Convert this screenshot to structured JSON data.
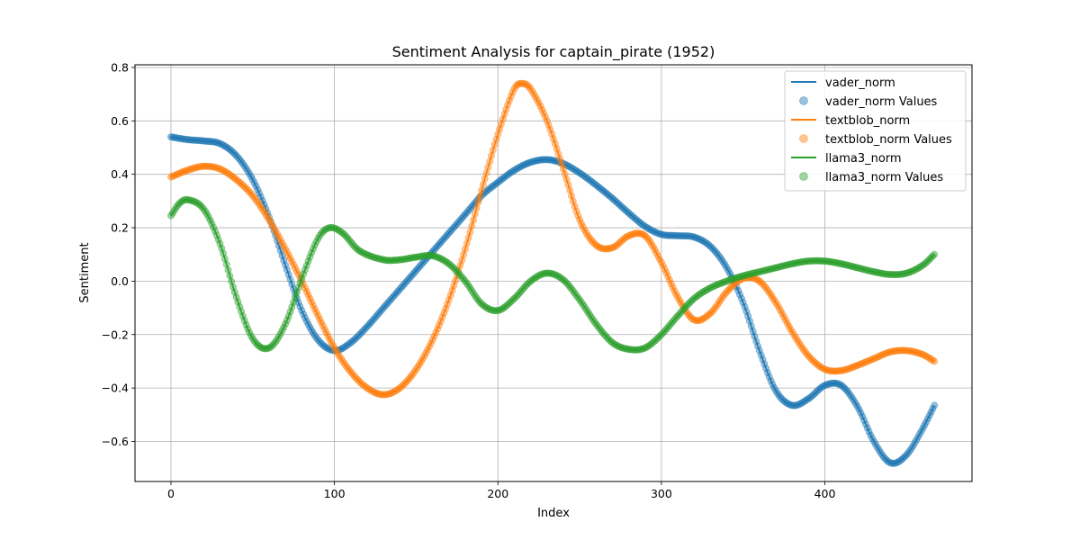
{
  "chart_data": {
    "type": "line",
    "title": "Sentiment Analysis for captain_pirate (1952)",
    "xlabel": "Index",
    "ylabel": "Sentiment",
    "xlim": [
      -22,
      490
    ],
    "ylim": [
      -0.75,
      0.81
    ],
    "xticks": [
      0,
      100,
      200,
      300,
      400
    ],
    "yticks": [
      -0.6,
      -0.4,
      -0.2,
      0.0,
      0.2,
      0.4,
      0.6,
      0.8
    ],
    "ytick_labels": [
      "−0.6",
      "−0.4",
      "−0.2",
      "0.0",
      "0.2",
      "0.4",
      "0.6",
      "0.8"
    ],
    "grid": true,
    "legend_position": "top-right",
    "n_points": 468,
    "series": [
      {
        "name": "vader_norm",
        "values_label": "vader_norm Values",
        "color": "#1f77b4",
        "anchors": [
          [
            0,
            0.54
          ],
          [
            10,
            0.53
          ],
          [
            20,
            0.525
          ],
          [
            30,
            0.515
          ],
          [
            40,
            0.47
          ],
          [
            50,
            0.38
          ],
          [
            60,
            0.24
          ],
          [
            70,
            0.06
          ],
          [
            80,
            -0.11
          ],
          [
            90,
            -0.22
          ],
          [
            100,
            -0.26
          ],
          [
            110,
            -0.23
          ],
          [
            120,
            -0.17
          ],
          [
            130,
            -0.1
          ],
          [
            140,
            -0.03
          ],
          [
            150,
            0.04
          ],
          [
            160,
            0.11
          ],
          [
            170,
            0.18
          ],
          [
            180,
            0.25
          ],
          [
            190,
            0.32
          ],
          [
            200,
            0.37
          ],
          [
            210,
            0.415
          ],
          [
            220,
            0.445
          ],
          [
            230,
            0.455
          ],
          [
            240,
            0.44
          ],
          [
            250,
            0.405
          ],
          [
            260,
            0.36
          ],
          [
            270,
            0.31
          ],
          [
            280,
            0.255
          ],
          [
            290,
            0.205
          ],
          [
            300,
            0.175
          ],
          [
            310,
            0.17
          ],
          [
            320,
            0.165
          ],
          [
            330,
            0.13
          ],
          [
            340,
            0.05
          ],
          [
            350,
            -0.08
          ],
          [
            360,
            -0.26
          ],
          [
            370,
            -0.41
          ],
          [
            380,
            -0.465
          ],
          [
            390,
            -0.44
          ],
          [
            400,
            -0.39
          ],
          [
            410,
            -0.39
          ],
          [
            420,
            -0.47
          ],
          [
            430,
            -0.6
          ],
          [
            440,
            -0.68
          ],
          [
            450,
            -0.65
          ],
          [
            460,
            -0.55
          ],
          [
            467,
            -0.465
          ]
        ]
      },
      {
        "name": "textblob_norm",
        "values_label": "textblob_norm Values",
        "color": "#ff7f0e",
        "anchors": [
          [
            0,
            0.39
          ],
          [
            10,
            0.415
          ],
          [
            20,
            0.43
          ],
          [
            30,
            0.42
          ],
          [
            40,
            0.38
          ],
          [
            50,
            0.32
          ],
          [
            60,
            0.23
          ],
          [
            70,
            0.12
          ],
          [
            80,
            0.0
          ],
          [
            90,
            -0.13
          ],
          [
            100,
            -0.25
          ],
          [
            110,
            -0.34
          ],
          [
            120,
            -0.4
          ],
          [
            130,
            -0.425
          ],
          [
            140,
            -0.4
          ],
          [
            150,
            -0.33
          ],
          [
            160,
            -0.22
          ],
          [
            170,
            -0.07
          ],
          [
            180,
            0.12
          ],
          [
            190,
            0.34
          ],
          [
            200,
            0.55
          ],
          [
            210,
            0.72
          ],
          [
            215,
            0.74
          ],
          [
            220,
            0.72
          ],
          [
            230,
            0.6
          ],
          [
            240,
            0.42
          ],
          [
            250,
            0.23
          ],
          [
            260,
            0.135
          ],
          [
            270,
            0.125
          ],
          [
            280,
            0.17
          ],
          [
            290,
            0.17
          ],
          [
            300,
            0.07
          ],
          [
            310,
            -0.06
          ],
          [
            320,
            -0.145
          ],
          [
            330,
            -0.12
          ],
          [
            340,
            -0.04
          ],
          [
            350,
            0.01
          ],
          [
            360,
            0.0
          ],
          [
            370,
            -0.08
          ],
          [
            380,
            -0.19
          ],
          [
            390,
            -0.28
          ],
          [
            400,
            -0.33
          ],
          [
            410,
            -0.335
          ],
          [
            420,
            -0.315
          ],
          [
            430,
            -0.29
          ],
          [
            440,
            -0.265
          ],
          [
            450,
            -0.26
          ],
          [
            460,
            -0.275
          ],
          [
            467,
            -0.3
          ]
        ]
      },
      {
        "name": "llama3_norm",
        "values_label": "llama3_norm Values",
        "color": "#2ca02c",
        "anchors": [
          [
            0,
            0.245
          ],
          [
            5,
            0.29
          ],
          [
            10,
            0.305
          ],
          [
            20,
            0.27
          ],
          [
            30,
            0.14
          ],
          [
            40,
            -0.06
          ],
          [
            50,
            -0.215
          ],
          [
            60,
            -0.25
          ],
          [
            70,
            -0.16
          ],
          [
            80,
            0.01
          ],
          [
            90,
            0.16
          ],
          [
            97,
            0.2
          ],
          [
            105,
            0.18
          ],
          [
            115,
            0.115
          ],
          [
            130,
            0.08
          ],
          [
            140,
            0.08
          ],
          [
            150,
            0.09
          ],
          [
            160,
            0.095
          ],
          [
            170,
            0.065
          ],
          [
            180,
            0.0
          ],
          [
            190,
            -0.085
          ],
          [
            200,
            -0.11
          ],
          [
            210,
            -0.065
          ],
          [
            220,
            0.0
          ],
          [
            230,
            0.03
          ],
          [
            240,
            0.005
          ],
          [
            250,
            -0.07
          ],
          [
            260,
            -0.16
          ],
          [
            270,
            -0.23
          ],
          [
            280,
            -0.255
          ],
          [
            290,
            -0.25
          ],
          [
            300,
            -0.2
          ],
          [
            310,
            -0.13
          ],
          [
            320,
            -0.065
          ],
          [
            330,
            -0.025
          ],
          [
            340,
            0.0
          ],
          [
            350,
            0.02
          ],
          [
            360,
            0.035
          ],
          [
            370,
            0.05
          ],
          [
            380,
            0.065
          ],
          [
            390,
            0.075
          ],
          [
            400,
            0.075
          ],
          [
            410,
            0.065
          ],
          [
            420,
            0.05
          ],
          [
            430,
            0.035
          ],
          [
            440,
            0.025
          ],
          [
            450,
            0.03
          ],
          [
            460,
            0.06
          ],
          [
            467,
            0.1
          ]
        ]
      }
    ]
  }
}
